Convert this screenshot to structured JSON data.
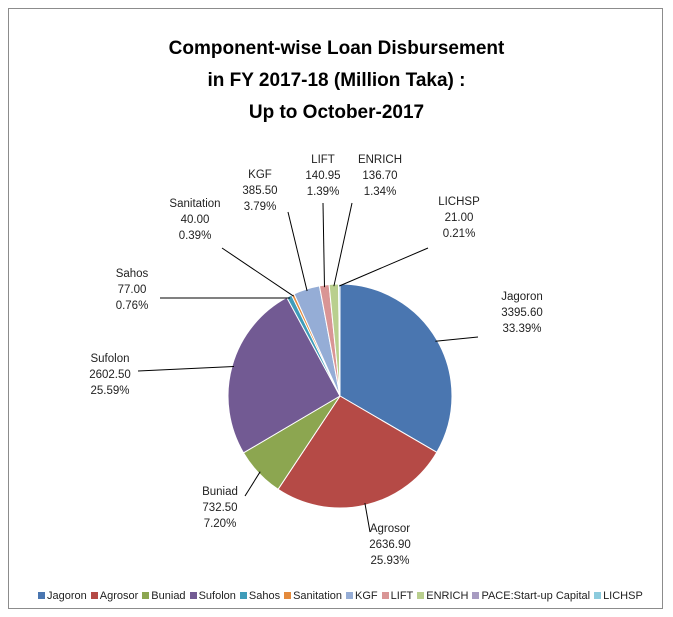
{
  "chart_data": {
    "type": "pie",
    "title_lines": [
      "Component-wise Loan Disbursement",
      "in FY 2017-18 (Million Taka) :",
      "Up to October-2017"
    ],
    "slices": [
      {
        "name": "Jagoron",
        "value": 3395.6,
        "value_label": "3395.60",
        "pct_label": "33.39%",
        "color": "#4a76b0"
      },
      {
        "name": "Agrosor",
        "value": 2636.9,
        "value_label": "2636.90",
        "pct_label": "25.93%",
        "color": "#b54a46"
      },
      {
        "name": "Buniad",
        "value": 732.5,
        "value_label": "732.50",
        "pct_label": "7.20%",
        "color": "#8ca650"
      },
      {
        "name": "Sufolon",
        "value": 2602.5,
        "value_label": "2602.50",
        "pct_label": "25.59%",
        "color": "#725a93"
      },
      {
        "name": "Sahos",
        "value": 77.0,
        "value_label": "77.00",
        "pct_label": "0.76%",
        "color": "#3f9cb9"
      },
      {
        "name": "Sanitation",
        "value": 40.0,
        "value_label": "40.00",
        "pct_label": "0.39%",
        "color": "#e48a3c"
      },
      {
        "name": "KGF",
        "value": 385.5,
        "value_label": "385.50",
        "pct_label": "3.79%",
        "color": "#95add6"
      },
      {
        "name": "LIFT",
        "value": 140.95,
        "value_label": "140.95",
        "pct_label": "1.39%",
        "color": "#d99595"
      },
      {
        "name": "ENRICH",
        "value": 136.7,
        "value_label": "136.70",
        "pct_label": "1.34%",
        "color": "#b9cf8e"
      },
      {
        "name": "PACE:Start-up Capital",
        "value": 0,
        "value_label": "",
        "pct_label": "",
        "color": "#a79bc1"
      },
      {
        "name": "LICHSP",
        "value": 21.0,
        "value_label": "21.00",
        "pct_label": "0.21%",
        "color": "#8ccbdd"
      }
    ],
    "legend_position": "bottom"
  }
}
